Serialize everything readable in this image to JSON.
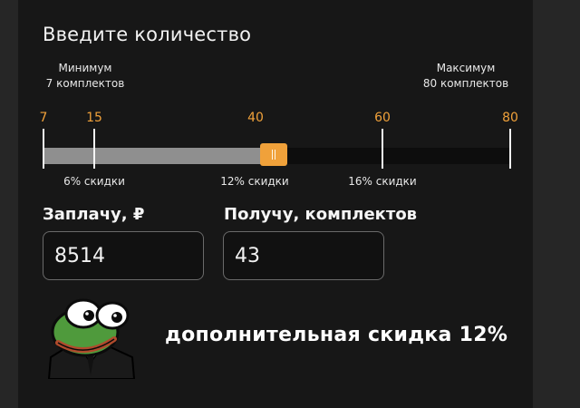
{
  "title": "Введите количество",
  "slider": {
    "min_label": "Минимум",
    "min_value": "7 комплектов",
    "max_label": "Максимум",
    "max_value": "80 комплектов",
    "ticks": [
      "7",
      "15",
      "40",
      "60",
      "80"
    ],
    "discounts": [
      "6% скидки",
      "12% скидки",
      "16% скидки"
    ],
    "min": 7,
    "max": 80,
    "current": 43
  },
  "fields": {
    "pay_label": "Заплачу, ₽",
    "pay_value": "8514",
    "get_label": "Получу, комплектов",
    "get_value": "43"
  },
  "promo": "дополнительная скидка 12%",
  "colors": {
    "accent": "#f0a13a",
    "background": "#171717",
    "text": "#f2f2f2"
  },
  "icons": {
    "mascot": "frog-mascot-icon"
  }
}
